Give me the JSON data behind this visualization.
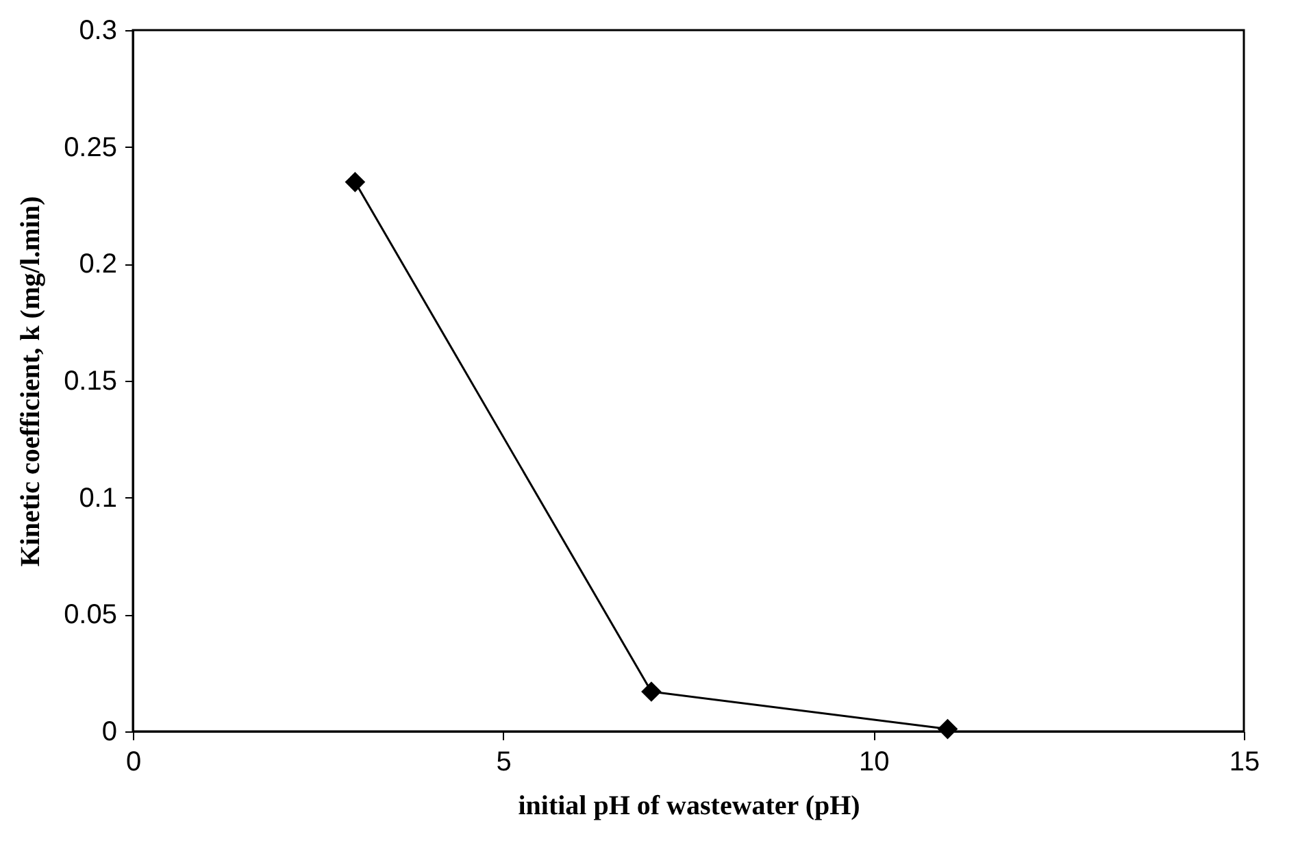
{
  "chart_data": {
    "type": "line",
    "xlabel": "initial pH of wastewater (pH)",
    "ylabel": "Kinetic coefficient, k (mg/l.min)",
    "x": [
      3,
      7,
      11
    ],
    "series": [
      {
        "color": "#000000",
        "values": [
          0.235,
          0.017,
          0.001
        ]
      }
    ],
    "xlim": [
      0,
      15
    ],
    "xticks": [
      0,
      5,
      10,
      15
    ],
    "ylim": [
      0,
      0.3
    ],
    "yticks": [
      0,
      0.05,
      0.1,
      0.15,
      0.2,
      0.25,
      0.3
    ],
    "marker": "diamond",
    "line_style": "solid",
    "grid": false
  }
}
